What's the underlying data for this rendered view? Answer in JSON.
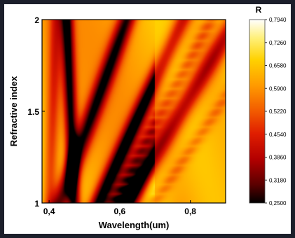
{
  "chart_data": {
    "type": "heatmap",
    "title": "",
    "xlabel": "Wavelength(um)",
    "ylabel": "Refractive index",
    "xlim": [
      0.38,
      0.9
    ],
    "ylim": [
      1.0,
      2.0
    ],
    "x_ticks": [
      0.4,
      0.6,
      0.8
    ],
    "x_tick_labels": [
      "0,4",
      "0,6",
      "0,8"
    ],
    "y_ticks": [
      1.0,
      1.5,
      2.0
    ],
    "y_tick_labels": [
      "1",
      "1.5",
      "2"
    ],
    "grid": false,
    "colorbar": {
      "title": "R",
      "placement": "right",
      "levels": [
        "0,7940",
        "0,7260",
        "0,6580",
        "0,5900",
        "0,5220",
        "0,4540",
        "0,3860",
        "0,3180",
        "0,2500"
      ],
      "range": [
        0.25,
        0.794
      ],
      "colors": [
        "#000000",
        "#5a0000",
        "#b30000",
        "#e01e00",
        "#f25a00",
        "#ff9a00",
        "#ffd100",
        "#fff07a",
        "#ffffff"
      ]
    },
    "bands": [
      {
        "description_values": "dark minimum ridge",
        "n_at_1": 0.62,
        "n_at_2": 0.86,
        "center_x_at_1": 0.62,
        "center_x_at_2": 0.6,
        "R_min": 0.25
      },
      {
        "n_slope": "linear",
        "x_at_n1": 0.47,
        "x_at_n2": 0.44,
        "R_min": 0.37
      }
    ],
    "features": {
      "minima_ridges": [
        {
          "x_at_n_1": 0.62,
          "x_at_n_2": 0.93,
          "R": 0.25
        },
        {
          "x_at_n_1": 0.54,
          "x_at_n_2": 0.78,
          "R": 0.33
        },
        {
          "x_at_n_1": 0.43,
          "x_at_n_2": 0.62,
          "R": 0.38
        },
        {
          "x_at_n_1": 0.47,
          "x_at_n_2": 0.45,
          "R": 0.36
        }
      ],
      "secondary_ridges": [
        {
          "x_at_n_1": 0.58,
          "x_at_n_2": 0.86,
          "R": 0.47
        },
        {
          "x_at_n_1": 0.7,
          "x_at_n_2": 1.05,
          "R": 0.52
        }
      ],
      "max_region": {
        "x": 0.71,
        "n": 1.05,
        "R": 0.79
      },
      "discontinuity_x": 0.7
    }
  }
}
